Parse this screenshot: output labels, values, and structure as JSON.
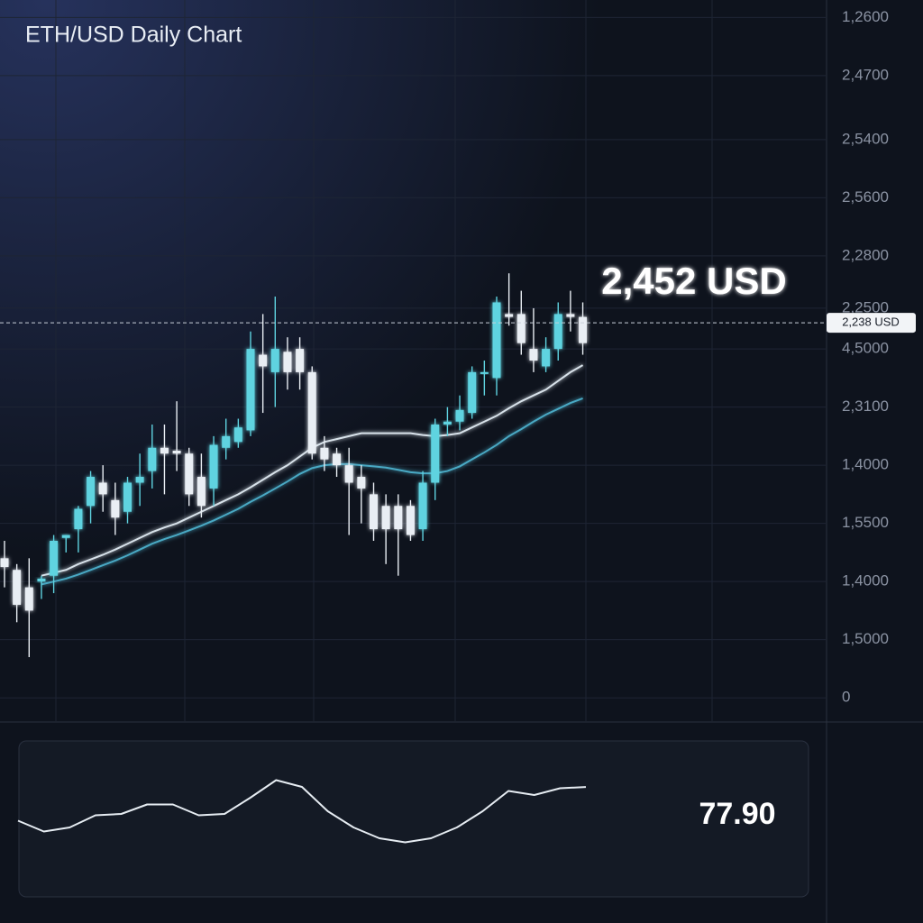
{
  "chart_data": {
    "type": "candlestick",
    "title": "ETH/USD Daily Chart",
    "headline": "2,452 USD",
    "categories": [
      null,
      null,
      null,
      null,
      null,
      null,
      null,
      null,
      null,
      null,
      null,
      null,
      null,
      null,
      null,
      null,
      null,
      null,
      null,
      null,
      null,
      null,
      null,
      null,
      null,
      null,
      null,
      null,
      null,
      null,
      null,
      null,
      null,
      null,
      null,
      null,
      null,
      null,
      null,
      null,
      null,
      null,
      null,
      null,
      null,
      null,
      null,
      null
    ],
    "open": [
      2.4,
      2.2,
      1.9,
      2.0,
      2.1,
      2.75,
      2.9,
      3.3,
      3.7,
      3.4,
      3.2,
      3.7,
      3.9,
      4.3,
      4.25,
      4.2,
      3.8,
      3.6,
      4.3,
      4.4,
      4.6,
      5.9,
      5.6,
      5.95,
      6.0,
      5.6,
      4.3,
      4.2,
      4.0,
      3.8,
      3.5,
      3.3,
      3.3,
      3.3,
      2.9,
      3.7,
      4.7,
      4.75,
      4.9,
      5.6,
      5.5,
      6.6,
      6.6,
      6.0,
      5.7,
      6.0,
      6.6,
      6.55
    ],
    "high": [
      2.7,
      2.3,
      2.4,
      2.1,
      2.8,
      2.8,
      3.3,
      3.9,
      4.0,
      3.7,
      3.8,
      4.2,
      4.7,
      4.7,
      5.1,
      4.3,
      4.2,
      4.5,
      4.8,
      4.8,
      6.3,
      6.6,
      6.9,
      6.2,
      6.2,
      5.7,
      4.5,
      4.3,
      4.3,
      4.0,
      3.7,
      3.5,
      3.5,
      3.4,
      3.9,
      4.8,
      5.0,
      5.2,
      5.7,
      5.8,
      6.9,
      7.3,
      7.0,
      6.7,
      6.2,
      6.8,
      7.0,
      6.8
    ],
    "low": [
      1.9,
      1.3,
      0.7,
      1.7,
      1.8,
      2.5,
      2.5,
      3.0,
      3.2,
      2.8,
      3.0,
      3.3,
      3.6,
      3.5,
      3.9,
      3.3,
      3.1,
      3.3,
      4.1,
      4.3,
      4.5,
      4.9,
      5.0,
      5.3,
      5.3,
      4.1,
      3.9,
      3.8,
      2.8,
      3.0,
      2.7,
      2.3,
      2.1,
      2.7,
      2.7,
      3.4,
      4.5,
      4.6,
      4.8,
      5.2,
      5.2,
      6.4,
      5.9,
      5.6,
      5.6,
      5.8,
      6.3,
      5.9
    ],
    "close": [
      2.25,
      1.6,
      1.5,
      2.05,
      2.7,
      2.8,
      3.25,
      3.8,
      3.5,
      3.1,
      3.7,
      3.8,
      4.3,
      4.2,
      4.2,
      3.5,
      3.3,
      4.35,
      4.5,
      4.65,
      6.0,
      5.7,
      6.0,
      5.6,
      5.6,
      4.2,
      4.1,
      4.0,
      3.7,
      3.6,
      2.9,
      2.9,
      2.9,
      2.8,
      3.7,
      4.7,
      4.75,
      4.95,
      5.6,
      5.6,
      6.8,
      6.55,
      6.1,
      5.8,
      6.0,
      6.6,
      6.55,
      6.1
    ],
    "up_color": "#5fd3e0",
    "down_color": "#e9eef4",
    "lines": [
      {
        "color": "#d8e2ea",
        "values": [
          null,
          null,
          null,
          2.1,
          2.15,
          2.2,
          2.3,
          2.38,
          2.46,
          2.55,
          2.65,
          2.75,
          2.85,
          2.93,
          3.0,
          3.1,
          3.2,
          3.3,
          3.4,
          3.5,
          3.62,
          3.75,
          3.88,
          4.0,
          4.15,
          4.3,
          4.4,
          4.45,
          4.5,
          4.55,
          4.55,
          4.55,
          4.55,
          4.55,
          4.52,
          4.5,
          4.52,
          4.55,
          4.65,
          4.75,
          4.85,
          4.98,
          5.1,
          5.2,
          5.3,
          5.45,
          5.6,
          5.72
        ]
      },
      {
        "color": "#4aa9c4",
        "values": [
          null,
          null,
          null,
          1.95,
          2.0,
          2.05,
          2.12,
          2.2,
          2.28,
          2.36,
          2.45,
          2.55,
          2.65,
          2.73,
          2.8,
          2.88,
          2.96,
          3.05,
          3.15,
          3.25,
          3.37,
          3.48,
          3.6,
          3.72,
          3.85,
          3.95,
          4.0,
          4.02,
          4.02,
          4.0,
          3.98,
          3.96,
          3.92,
          3.88,
          3.86,
          3.86,
          3.9,
          3.98,
          4.1,
          4.22,
          4.35,
          4.5,
          4.62,
          4.75,
          4.87,
          4.97,
          5.07,
          5.15
        ]
      }
    ],
    "ylim": [
      -0.4,
      12
    ],
    "yticks": [
      {
        "value": 11.7,
        "label": "1,2600"
      },
      {
        "value": 10.7,
        "label": "2,4700"
      },
      {
        "value": 9.6,
        "label": "2,5400"
      },
      {
        "value": 8.6,
        "label": "2,5600"
      },
      {
        "value": 7.6,
        "label": "2,2800"
      },
      {
        "value": 6.7,
        "label": "2,2500"
      },
      {
        "value": 6,
        "label": "4,5000"
      },
      {
        "value": 5,
        "label": "2,3100"
      },
      {
        "value": 4,
        "label": "1,4000"
      },
      {
        "value": 3,
        "label": "1,5500"
      },
      {
        "value": 2,
        "label": "1,4000"
      },
      {
        "value": 1,
        "label": "1,5000"
      },
      0
    ],
    "grid": true,
    "price_line": {
      "value": 6.45,
      "label": "2,238 USD"
    },
    "indicator": {
      "ylim": [
        0,
        100
      ],
      "values": [
        53,
        45,
        48,
        57,
        58,
        65,
        65,
        57,
        58,
        70,
        83,
        78,
        60,
        48,
        40,
        37,
        40,
        48,
        60,
        75,
        72,
        77,
        77.9
      ],
      "current": {
        "value": 77.9,
        "label": "77.90"
      },
      "color": "#e6ecf2"
    }
  }
}
